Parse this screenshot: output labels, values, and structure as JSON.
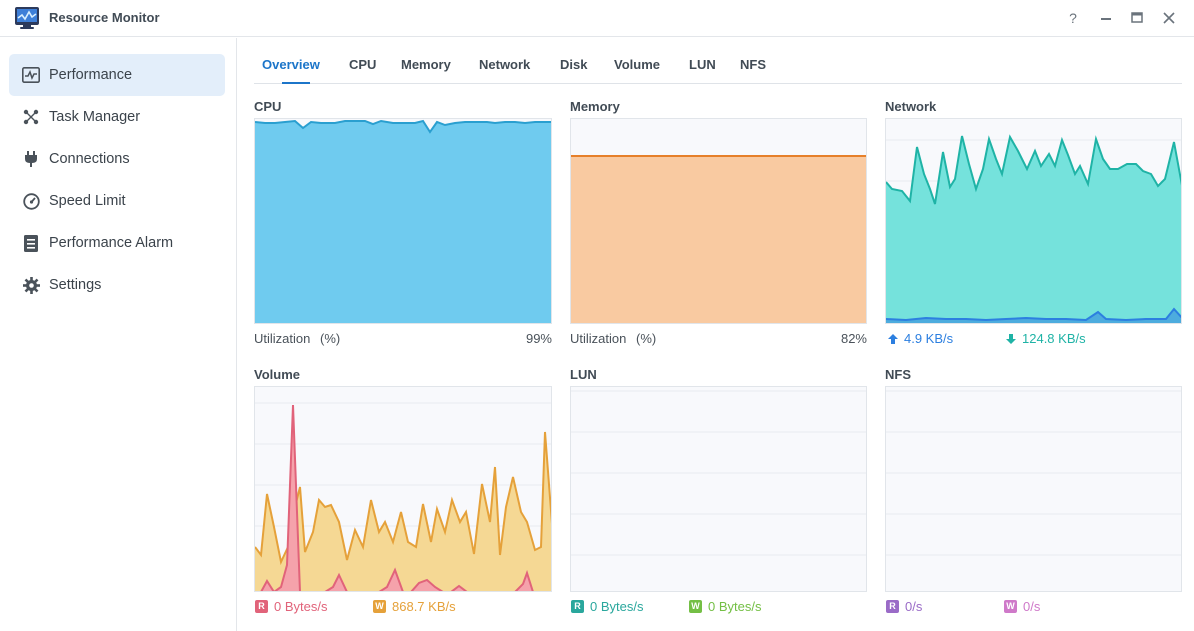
{
  "app": {
    "title": "Resource Monitor"
  },
  "window_controls": {
    "help": "?",
    "minimize": "—",
    "maximize": "□",
    "close": "✕"
  },
  "sidebar": {
    "items": [
      {
        "label": "Performance",
        "icon": "performance-icon",
        "active": true
      },
      {
        "label": "Task Manager",
        "icon": "task-manager-icon"
      },
      {
        "label": "Connections",
        "icon": "plug-icon"
      },
      {
        "label": "Speed Limit",
        "icon": "speedometer-icon"
      },
      {
        "label": "Performance Alarm",
        "icon": "alarm-list-icon"
      },
      {
        "label": "Settings",
        "icon": "gear-icon"
      }
    ]
  },
  "tabs": [
    "Overview",
    "CPU",
    "Memory",
    "Network",
    "Disk",
    "Volume",
    "LUN",
    "NFS"
  ],
  "active_tab": "Overview",
  "panels": {
    "cpu": {
      "title": "CPU",
      "label": "Utilization",
      "unit": "(%)",
      "value": "99%"
    },
    "memory": {
      "title": "Memory",
      "label": "Utilization",
      "unit": "(%)",
      "value": "82%"
    },
    "network": {
      "title": "Network",
      "up": "4.9 KB/s",
      "down": "124.8 KB/s"
    },
    "volume": {
      "title": "Volume",
      "read_badge": "R",
      "read": "0 Bytes/s",
      "write_badge": "W",
      "write": "868.7 KB/s"
    },
    "lun": {
      "title": "LUN",
      "read_badge": "R",
      "read": "0 Bytes/s",
      "write_badge": "W",
      "write": "0 Bytes/s"
    },
    "nfs": {
      "title": "NFS",
      "read_badge": "R",
      "read": "0/s",
      "write_badge": "W",
      "write": "0/s"
    }
  },
  "colors": {
    "accent": "#1c75c9",
    "cpu_fill": "#6fcbef",
    "cpu_line": "#2a9fd0",
    "memory_fill": "#f9caa1",
    "memory_line": "#e6802a",
    "net_fill": "#75e2dc",
    "net_line": "#1fb3a6",
    "net_up": "#2c7fe0",
    "vol_write_fill": "#f5d894",
    "vol_write_line": "#e5a13a",
    "vol_read_fill": "#f5a2ab",
    "vol_read_line": "#e1637a",
    "lun_read": "#2aa79d",
    "lun_write": "#74bf45",
    "nfs_read": "#9a6bc7",
    "nfs_write": "#cf79c9"
  }
}
